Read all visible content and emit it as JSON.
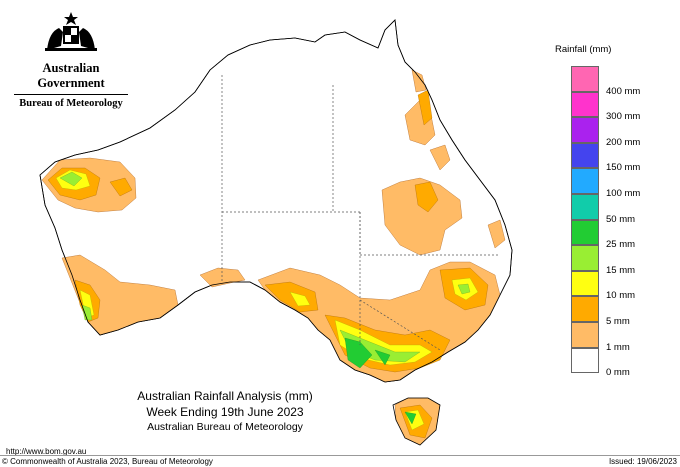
{
  "logo": {
    "government": "Australian Government",
    "bureau": "Bureau of Meteorology"
  },
  "legend": {
    "title": "Rainfall (mm)",
    "items": [
      {
        "label": "",
        "color": "#ff66b2"
      },
      {
        "label": "400 mm",
        "color": "#ff33cc"
      },
      {
        "label": "300 mm",
        "color": "#aa22ee"
      },
      {
        "label": "200 mm",
        "color": "#4444ee"
      },
      {
        "label": "150 mm",
        "color": "#22aaff"
      },
      {
        "label": "100 mm",
        "color": "#11ccaa"
      },
      {
        "label": "50 mm",
        "color": "#22cc33"
      },
      {
        "label": "25 mm",
        "color": "#99ee33"
      },
      {
        "label": "15 mm",
        "color": "#ffff11"
      },
      {
        "label": "10 mm",
        "color": "#ffaa00"
      },
      {
        "label": "5 mm",
        "color": "#ffbb66"
      },
      {
        "label": "1 mm",
        "color": "#ffffff"
      },
      {
        "label": "0 mm",
        "color": ""
      }
    ]
  },
  "caption": {
    "line1": "Australian Rainfall Analysis (mm)",
    "line2": "Week Ending 19th June 2023",
    "line3": "Australian Bureau of Meteorology"
  },
  "footer": {
    "url": "http://www.bom.gov.au",
    "copyright": "© Commonwealth of Australia 2023, Bureau of Meteorology",
    "issued": "Issued: 19/06/2023"
  }
}
